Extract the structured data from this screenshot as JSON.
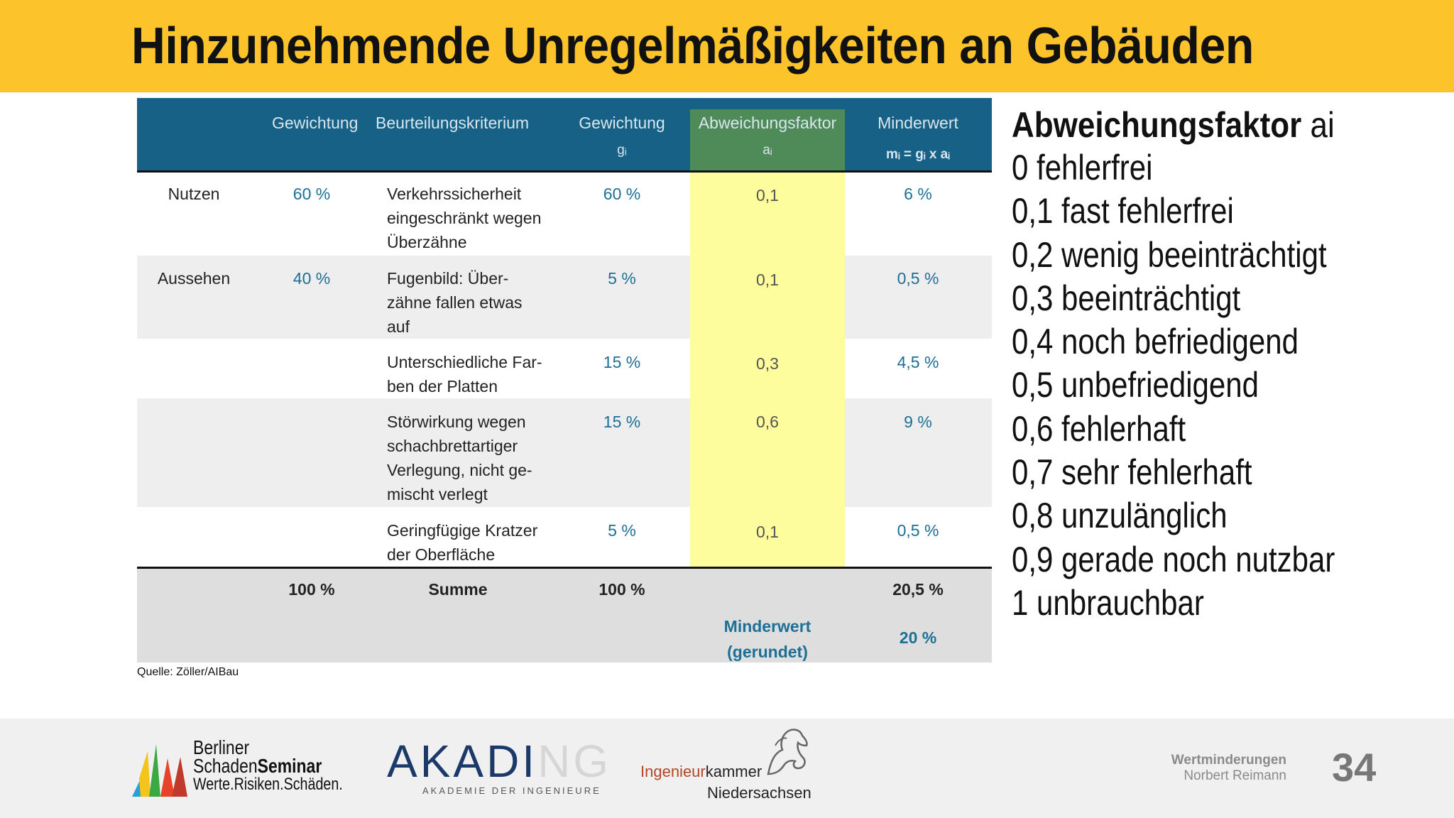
{
  "title": "Hinzunehmende Unregelmäßigkeiten an Gebäuden",
  "table": {
    "headers": {
      "weight": "Gewichtung",
      "criterion": "Beurteilungskriterium",
      "weight_g": "Gewichtung",
      "weight_g_sub": "gᵢ",
      "factor": "Abweichungsfaktor",
      "factor_sub": "aᵢ",
      "minderwert": "Minderwert",
      "minderwert_sub": "mᵢ = gᵢ x aᵢ"
    },
    "rows": [
      {
        "category": "Nutzen",
        "weight": "60 %",
        "criterion": [
          "Verkehrssicherheit",
          "eingeschränkt wegen",
          "Überzähne"
        ],
        "g": "60 %",
        "a": "0,1",
        "m": "6 %"
      },
      {
        "category": "Aussehen",
        "weight": "40 %",
        "criterion": [
          "Fugenbild: Über-",
          "zähne fallen etwas",
          "auf"
        ],
        "g": "5 %",
        "a": "0,1",
        "m": "0,5 %"
      },
      {
        "category": "",
        "weight": "",
        "criterion": [
          "Unterschiedliche Far-",
          "ben der Platten"
        ],
        "g": "15 %",
        "a": "0,3",
        "m": "4,5 %"
      },
      {
        "category": "",
        "weight": "",
        "criterion": [
          "Störwirkung wegen",
          "schachbrettartiger",
          "Verlegung, nicht ge-",
          "mischt verlegt"
        ],
        "g": "15 %",
        "a": "0,6",
        "m": "9 %"
      },
      {
        "category": "",
        "weight": "",
        "criterion": [
          "Geringfügige Kratzer",
          "der Oberfläche"
        ],
        "g": "5 %",
        "a": "0,1",
        "m": "0,5 %"
      }
    ],
    "footer": {
      "weight_total": "100 %",
      "sum_label": "Summe",
      "g_total": "100 %",
      "m_total": "20,5 %",
      "rounded_label_1": "Minderwert",
      "rounded_label_2": "(gerundet)",
      "rounded_value": "20 %"
    },
    "source": "Quelle: Zöller/AIBau"
  },
  "legend": {
    "title_main": "Abweichungsfaktor ",
    "title_sub": "ai",
    "items": [
      "0 fehlerfrei",
      "0,1 fast fehlerfrei",
      "0,2 wenig beeinträchtigt",
      "0,3 beeinträchtigt",
      "0,4 noch befriedigend",
      "0,5 unbefriedigend",
      "0,6 fehlerhaft",
      "0,7 sehr fehlerhaft",
      "0,8 unzulänglich",
      "0,9 gerade noch nutzbar",
      "1 unbrauchbar"
    ]
  },
  "footer": {
    "bss": {
      "line1": "Berliner",
      "line2a": "Schaden",
      "line2b": "Seminar",
      "line3": "Werte.Risiken.Schäden."
    },
    "akading": {
      "main_dark": "AKADI",
      "main_light": "NG",
      "sub": "AKADEMIE DER INGENIEURE"
    },
    "ik": {
      "line1a": "Ingenieur",
      "line1b": "kammer",
      "line2": "Niedersachsen"
    },
    "author_topic": "Wertminderungen",
    "author_name": "Norbert Reimann",
    "page_number": "34"
  },
  "colors": {
    "title_bar": "#fcc42a",
    "table_header": "#166185",
    "highlight_header": "#4f8a59",
    "highlight_body": "#fefd9d",
    "value_blue": "#1d6f96"
  }
}
